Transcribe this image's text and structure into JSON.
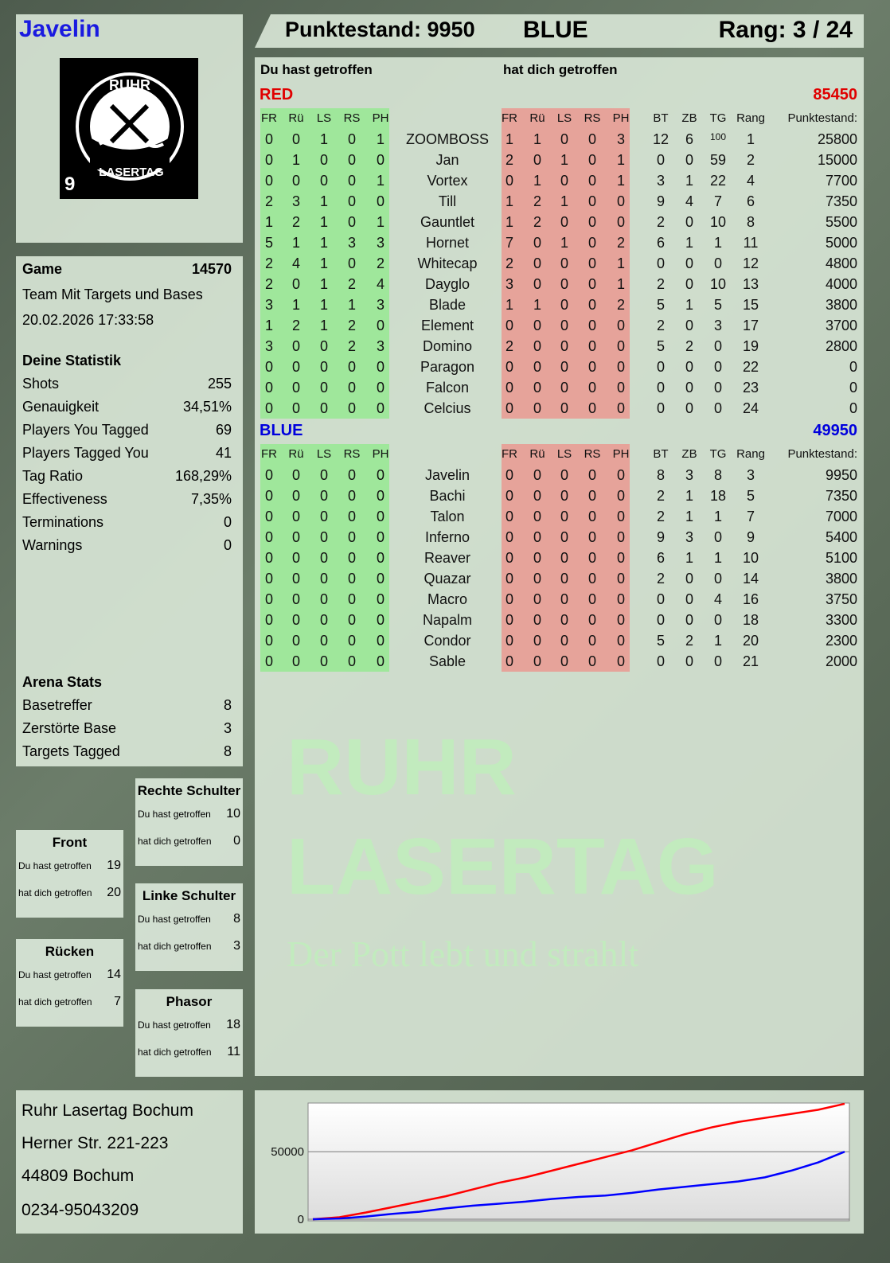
{
  "player": {
    "name": "Javelin"
  },
  "logo": {
    "top": "RUHR",
    "bottom": "LASERTAG",
    "badge": "9"
  },
  "header": {
    "score": "Punktestand: 9950",
    "team": "BLUE",
    "rank": "Rang: 3 / 24"
  },
  "columns": {
    "you_hit": "Du hast getroffen",
    "hit_you": "hat dich getroffen",
    "hit_cols": [
      "FR",
      "Rü",
      "LS",
      "RS",
      "PH"
    ],
    "stat_cols": [
      "BT",
      "ZB",
      "TG",
      "Rang",
      "Punktestand:"
    ]
  },
  "colors": {
    "red": "#e00000",
    "blue": "#0000dd",
    "green_bg": "#9fe79b",
    "red_bg": "#e6a39a"
  },
  "teams": [
    {
      "name": "RED",
      "score": "85450",
      "color": "#e00000",
      "players": [
        [
          "0",
          "0",
          "1",
          "0",
          "1",
          "ZOOMBOSS",
          "1",
          "1",
          "0",
          "0",
          "3",
          "12",
          "6",
          "100",
          "1",
          "25800"
        ],
        [
          "0",
          "1",
          "0",
          "0",
          "0",
          "Jan",
          "2",
          "0",
          "1",
          "0",
          "1",
          "0",
          "0",
          "59",
          "2",
          "15000"
        ],
        [
          "0",
          "0",
          "0",
          "0",
          "1",
          "Vortex",
          "0",
          "1",
          "0",
          "0",
          "1",
          "3",
          "1",
          "22",
          "4",
          "7700"
        ],
        [
          "2",
          "3",
          "1",
          "0",
          "0",
          "Till",
          "1",
          "2",
          "1",
          "0",
          "0",
          "9",
          "4",
          "7",
          "6",
          "7350"
        ],
        [
          "1",
          "2",
          "1",
          "0",
          "1",
          "Gauntlet",
          "1",
          "2",
          "0",
          "0",
          "0",
          "2",
          "0",
          "10",
          "8",
          "5500"
        ],
        [
          "5",
          "1",
          "1",
          "3",
          "3",
          "Hornet",
          "7",
          "0",
          "1",
          "0",
          "2",
          "6",
          "1",
          "1",
          "11",
          "5000"
        ],
        [
          "2",
          "4",
          "1",
          "0",
          "2",
          "Whitecap",
          "2",
          "0",
          "0",
          "0",
          "1",
          "0",
          "0",
          "0",
          "12",
          "4800"
        ],
        [
          "2",
          "0",
          "1",
          "2",
          "4",
          "Dayglo",
          "3",
          "0",
          "0",
          "0",
          "1",
          "2",
          "0",
          "10",
          "13",
          "4000"
        ],
        [
          "3",
          "1",
          "1",
          "1",
          "3",
          "Blade",
          "1",
          "1",
          "0",
          "0",
          "2",
          "5",
          "1",
          "5",
          "15",
          "3800"
        ],
        [
          "1",
          "2",
          "1",
          "2",
          "0",
          "Element",
          "0",
          "0",
          "0",
          "0",
          "0",
          "2",
          "0",
          "3",
          "17",
          "3700"
        ],
        [
          "3",
          "0",
          "0",
          "2",
          "3",
          "Domino",
          "2",
          "0",
          "0",
          "0",
          "0",
          "5",
          "2",
          "0",
          "19",
          "2800"
        ],
        [
          "0",
          "0",
          "0",
          "0",
          "0",
          "Paragon",
          "0",
          "0",
          "0",
          "0",
          "0",
          "0",
          "0",
          "0",
          "22",
          "0"
        ],
        [
          "0",
          "0",
          "0",
          "0",
          "0",
          "Falcon",
          "0",
          "0",
          "0",
          "0",
          "0",
          "0",
          "0",
          "0",
          "23",
          "0"
        ],
        [
          "0",
          "0",
          "0",
          "0",
          "0",
          "Celcius",
          "0",
          "0",
          "0",
          "0",
          "0",
          "0",
          "0",
          "0",
          "24",
          "0"
        ]
      ]
    },
    {
      "name": "BLUE",
      "score": "49950",
      "color": "#0000dd",
      "players": [
        [
          "0",
          "0",
          "0",
          "0",
          "0",
          "Javelin",
          "0",
          "0",
          "0",
          "0",
          "0",
          "8",
          "3",
          "8",
          "3",
          "9950"
        ],
        [
          "0",
          "0",
          "0",
          "0",
          "0",
          "Bachi",
          "0",
          "0",
          "0",
          "0",
          "0",
          "2",
          "1",
          "18",
          "5",
          "7350"
        ],
        [
          "0",
          "0",
          "0",
          "0",
          "0",
          "Talon",
          "0",
          "0",
          "0",
          "0",
          "0",
          "2",
          "1",
          "1",
          "7",
          "7000"
        ],
        [
          "0",
          "0",
          "0",
          "0",
          "0",
          "Inferno",
          "0",
          "0",
          "0",
          "0",
          "0",
          "9",
          "3",
          "0",
          "9",
          "5400"
        ],
        [
          "0",
          "0",
          "0",
          "0",
          "0",
          "Reaver",
          "0",
          "0",
          "0",
          "0",
          "0",
          "6",
          "1",
          "1",
          "10",
          "5100"
        ],
        [
          "0",
          "0",
          "0",
          "0",
          "0",
          "Quazar",
          "0",
          "0",
          "0",
          "0",
          "0",
          "2",
          "0",
          "0",
          "14",
          "3800"
        ],
        [
          "0",
          "0",
          "0",
          "0",
          "0",
          "Macro",
          "0",
          "0",
          "0",
          "0",
          "0",
          "0",
          "0",
          "4",
          "16",
          "3750"
        ],
        [
          "0",
          "0",
          "0",
          "0",
          "0",
          "Napalm",
          "0",
          "0",
          "0",
          "0",
          "0",
          "0",
          "0",
          "0",
          "18",
          "3300"
        ],
        [
          "0",
          "0",
          "0",
          "0",
          "0",
          "Condor",
          "0",
          "0",
          "0",
          "0",
          "0",
          "5",
          "2",
          "1",
          "20",
          "2300"
        ],
        [
          "0",
          "0",
          "0",
          "0",
          "0",
          "Sable",
          "0",
          "0",
          "0",
          "0",
          "0",
          "0",
          "0",
          "0",
          "21",
          "2000"
        ]
      ]
    }
  ],
  "game": {
    "label": "Game",
    "id": "14570",
    "mode": "Team Mit Targets und Bases",
    "date": "20.02.2026 17:33:58"
  },
  "stats": {
    "title": "Deine Statistik",
    "rows": [
      [
        "Shots",
        "255"
      ],
      [
        "Genauigkeit",
        "34,51%"
      ],
      [
        "Players You Tagged",
        "69"
      ],
      [
        "Players Tagged You",
        "41"
      ],
      [
        "Tag Ratio",
        "168,29%"
      ],
      [
        "Effectiveness",
        "7,35%"
      ],
      [
        "Terminations",
        "0"
      ],
      [
        "Warnings",
        "0"
      ]
    ]
  },
  "arena": {
    "title": "Arena Stats",
    "rows": [
      [
        "Basetreffer",
        "8"
      ],
      [
        "Zerstörte Base",
        "3"
      ],
      [
        "Targets Tagged",
        "8"
      ]
    ]
  },
  "hitboxes": [
    {
      "title": "Rechte Schulter",
      "you": "10",
      "them": "0"
    },
    {
      "title": "Front",
      "you": "19",
      "them": "20"
    },
    {
      "title": "Linke Schulter",
      "you": "8",
      "them": "3"
    },
    {
      "title": "Rücken",
      "you": "14",
      "them": "7"
    },
    {
      "title": "Phasor",
      "you": "18",
      "them": "11"
    }
  ],
  "address": [
    "Ruhr Lasertag Bochum",
    "Herner Str. 221-223",
    "44809 Bochum",
    "0234-95043209"
  ],
  "watermark": {
    "line1": "RUHR",
    "line2": "LASERTAG",
    "slogan": "Der Pott lebt und strahlt"
  },
  "chart_data": {
    "type": "line",
    "title": "",
    "xlabel": "",
    "ylabel": "",
    "ylim": [
      0,
      86000
    ],
    "yticks": [
      "0",
      "50000"
    ],
    "grid": "horizontal at 50000",
    "series": [
      {
        "color": "#ff0000",
        "values": [
          0,
          1500,
          5000,
          9000,
          13000,
          17000,
          22000,
          27000,
          31000,
          36000,
          41000,
          46000,
          51000,
          57000,
          63000,
          68000,
          72000,
          75000,
          78000,
          81000,
          85450
        ]
      },
      {
        "color": "#0000ff",
        "values": [
          0,
          500,
          2000,
          4000,
          5500,
          8000,
          10000,
          11500,
          13000,
          15000,
          16500,
          17500,
          19500,
          22000,
          24000,
          26000,
          28000,
          31000,
          36000,
          42000,
          49950
        ]
      }
    ]
  }
}
